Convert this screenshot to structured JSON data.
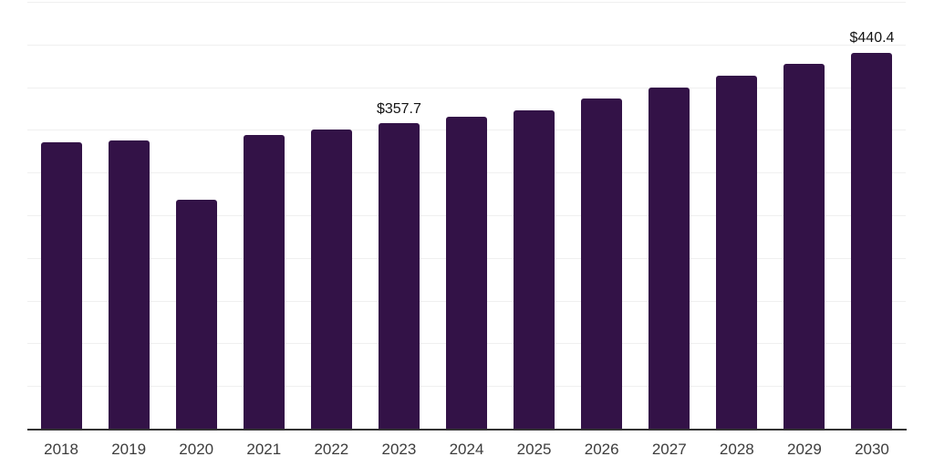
{
  "chart_data": {
    "type": "bar",
    "title": "",
    "xlabel": "",
    "ylabel": "",
    "categories": [
      "2018",
      "2019",
      "2020",
      "2021",
      "2022",
      "2023",
      "2024",
      "2025",
      "2026",
      "2027",
      "2028",
      "2029",
      "2030"
    ],
    "values": [
      335.6,
      338.1,
      268.4,
      344.5,
      350.8,
      357.7,
      365.4,
      372.8,
      387.0,
      399.4,
      413.5,
      427.0,
      440.4
    ],
    "data_labels": {
      "2023": "$357.7",
      "2030": "$440.4"
    },
    "currency_prefix": "$",
    "ylim": [
      0,
      500
    ],
    "gridline_step": 50,
    "grid": true,
    "legend": false,
    "y_tick_labels_shown": false,
    "colors": {
      "bar": "#331247",
      "axis_line": "#333333",
      "gridline": "#f0f0f0",
      "tick_label": "#3d3d3d",
      "data_label": "#141414",
      "background": "#ffffff"
    }
  }
}
